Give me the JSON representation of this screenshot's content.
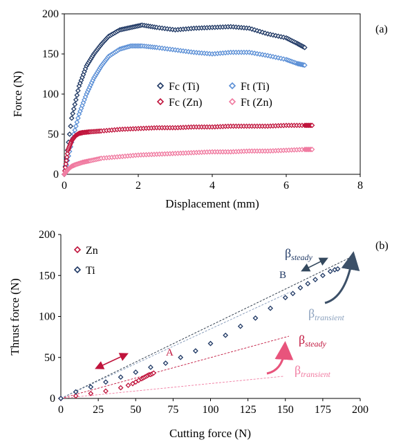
{
  "chart_data": [
    {
      "type": "scatter",
      "panel_label": "(a)",
      "xlabel": "Displacement (mm)",
      "ylabel": "Force (N)",
      "xlim": [
        0,
        8
      ],
      "ylim": [
        0,
        200
      ],
      "xticks": [
        "0",
        "2",
        "4",
        "6",
        "8"
      ],
      "yticks": [
        "0",
        "50",
        "100",
        "150",
        "200"
      ],
      "grid": false,
      "legend_position": "center",
      "series": [
        {
          "name": "Fc (Ti)",
          "color": "#1f3864",
          "marker": "diamond",
          "x": [
            0.0,
            0.2,
            0.4,
            0.6,
            0.8,
            1.0,
            1.2,
            1.5,
            1.8,
            2.1,
            2.5,
            3.0,
            3.5,
            4.0,
            4.5,
            5.0,
            5.5,
            6.0,
            6.3,
            6.5
          ],
          "y": [
            0,
            70,
            110,
            135,
            150,
            162,
            172,
            180,
            183,
            186,
            183,
            180,
            182,
            183,
            184,
            182,
            175,
            170,
            163,
            158
          ]
        },
        {
          "name": "Ft (Ti)",
          "color": "#5b8fd6",
          "marker": "diamond",
          "x": [
            0.0,
            0.2,
            0.4,
            0.6,
            0.8,
            1.0,
            1.2,
            1.5,
            1.8,
            2.1,
            2.5,
            3.0,
            3.5,
            4.0,
            4.5,
            5.0,
            5.5,
            6.0,
            6.3,
            6.5
          ],
          "y": [
            0,
            40,
            75,
            100,
            120,
            135,
            147,
            156,
            160,
            160,
            158,
            155,
            152,
            150,
            152,
            152,
            148,
            143,
            138,
            136
          ]
        },
        {
          "name": "Fc (Zn)",
          "color": "#c0143c",
          "marker": "diamond",
          "x": [
            0.0,
            0.1,
            0.2,
            0.3,
            0.4,
            0.5,
            0.7,
            1.0,
            1.5,
            2.0,
            2.5,
            3.0,
            3.5,
            4.0,
            4.5,
            5.0,
            5.5,
            6.0,
            6.5,
            6.7
          ],
          "y": [
            0,
            30,
            42,
            48,
            51,
            52,
            53,
            54,
            56,
            57,
            58,
            58,
            59,
            59,
            60,
            60,
            60,
            61,
            61,
            61
          ]
        },
        {
          "name": "Ft (Zn)",
          "color": "#f07aa0",
          "marker": "diamond",
          "x": [
            0.0,
            0.1,
            0.2,
            0.3,
            0.5,
            0.7,
            1.0,
            1.5,
            2.0,
            2.5,
            3.0,
            3.5,
            4.0,
            4.5,
            5.0,
            5.5,
            6.0,
            6.5,
            6.7
          ],
          "y": [
            0,
            6,
            10,
            12,
            15,
            17,
            20,
            22,
            24,
            25,
            26,
            27,
            28,
            28,
            29,
            29,
            30,
            31,
            31
          ]
        }
      ]
    },
    {
      "type": "scatter",
      "panel_label": "(b)",
      "xlabel": "Cutting force (N)",
      "ylabel": "Thrust force (N)",
      "xlim": [
        0,
        200
      ],
      "ylim": [
        0,
        200
      ],
      "xticks": [
        "0",
        "25",
        "50",
        "75",
        "100",
        "125",
        "150",
        "175",
        "200"
      ],
      "yticks": [
        "0",
        "50",
        "100",
        "150",
        "200"
      ],
      "grid": false,
      "legend_position": "top-left",
      "series": [
        {
          "name": "Zn",
          "color": "#c0143c",
          "marker": "diamond",
          "x": [
            0,
            10,
            20,
            30,
            40,
            45,
            48,
            50,
            52,
            54,
            55,
            56,
            57,
            58,
            59,
            60,
            61,
            62
          ],
          "y": [
            0,
            3,
            6,
            9,
            13,
            16,
            18,
            20,
            22,
            24,
            25,
            26,
            27,
            28,
            29,
            29,
            30,
            31
          ]
        },
        {
          "name": "Ti",
          "color": "#1f3864",
          "marker": "diamond",
          "x": [
            0,
            10,
            20,
            30,
            40,
            50,
            60,
            70,
            80,
            90,
            100,
            110,
            120,
            130,
            140,
            150,
            155,
            160,
            165,
            170,
            175,
            180,
            183,
            185
          ],
          "y": [
            0,
            8,
            14,
            20,
            26,
            32,
            38,
            43,
            50,
            58,
            67,
            77,
            88,
            98,
            110,
            123,
            128,
            135,
            140,
            145,
            150,
            155,
            157,
            158
          ]
        }
      ],
      "annotations": {
        "A": "A",
        "B": "B",
        "beta_symbol": "β",
        "steady": "steady",
        "transient": "transient"
      }
    }
  ]
}
